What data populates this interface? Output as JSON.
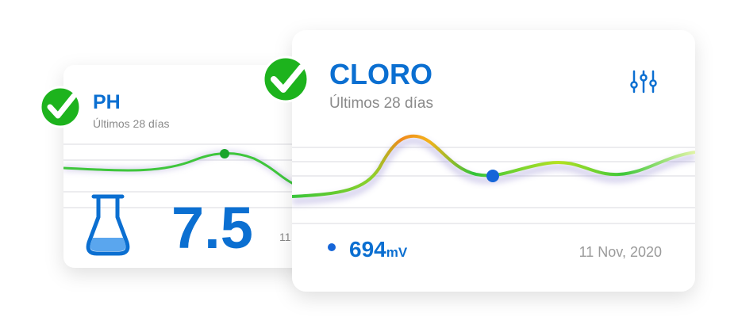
{
  "ph_card": {
    "title": "PH",
    "subtitle": "Últimos 28 días",
    "value": "7.5",
    "date": "11"
  },
  "cloro_card": {
    "title": "CLORO",
    "subtitle": "Últimos 28 días",
    "value": "694",
    "unit": "mV",
    "date": "11 Nov, 2020"
  }
}
